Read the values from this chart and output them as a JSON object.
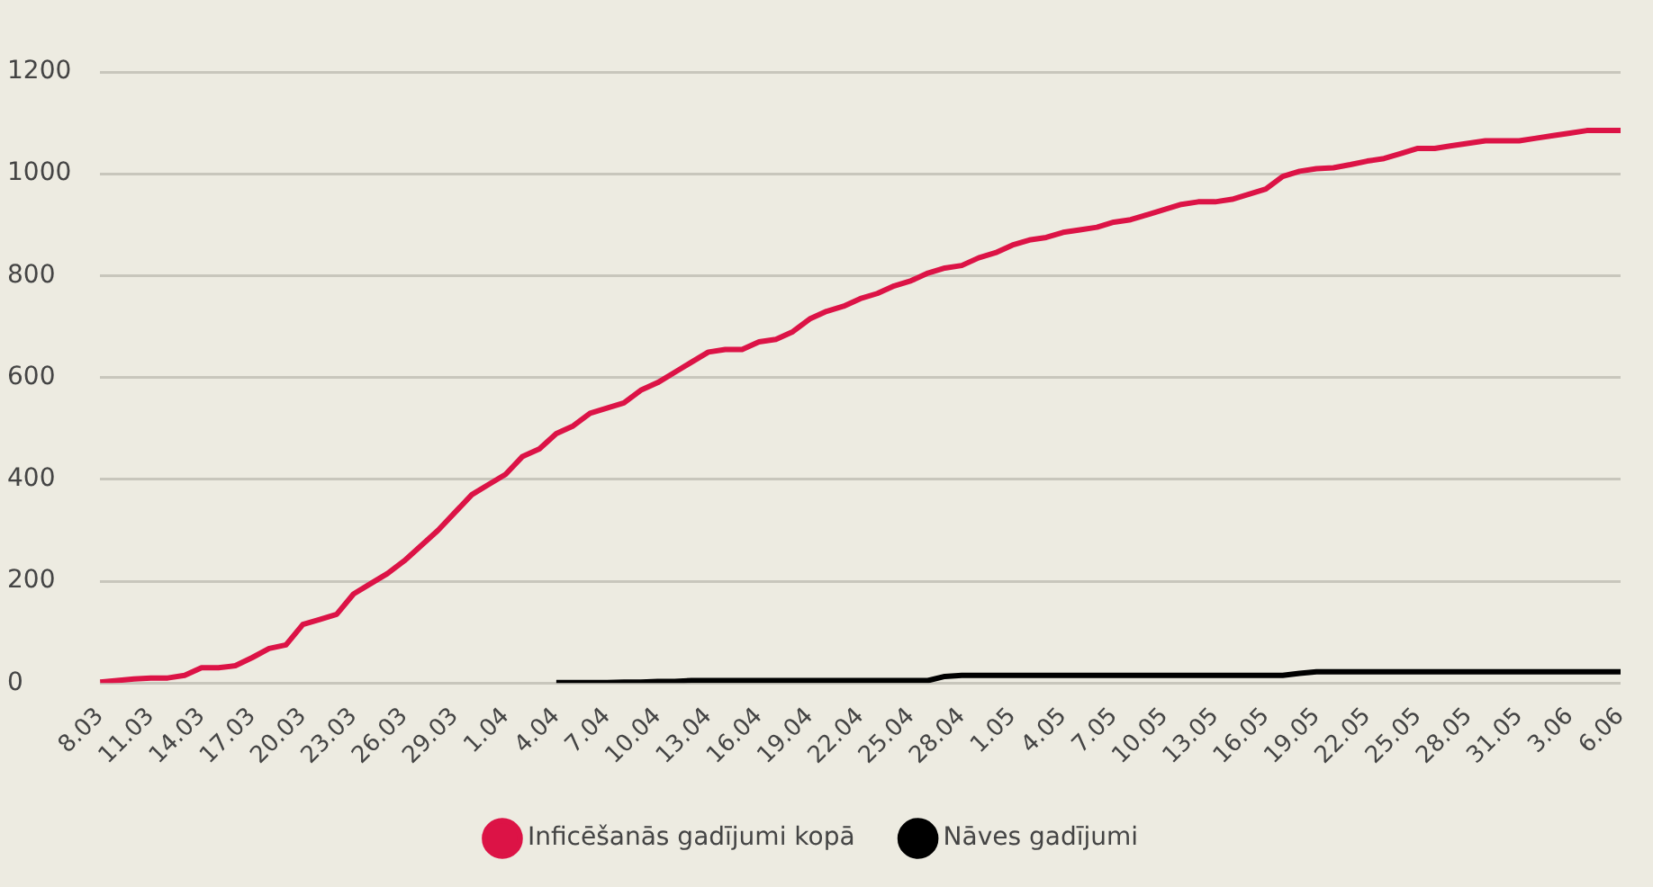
{
  "chart_data": {
    "type": "line",
    "categories": [
      "8.03",
      null,
      null,
      "11.03",
      null,
      null,
      "14.03",
      null,
      null,
      "17.03",
      null,
      null,
      "20.03",
      null,
      null,
      "23.03",
      null,
      null,
      "26.03",
      null,
      null,
      "29.03",
      null,
      null,
      "1.04",
      null,
      null,
      "4.04",
      null,
      null,
      "7.04",
      null,
      null,
      "10.04",
      null,
      null,
      "13.04",
      null,
      null,
      "16.04",
      null,
      null,
      "19.04",
      null,
      null,
      "22.04",
      null,
      null,
      "25.04",
      null,
      null,
      "28.04",
      null,
      null,
      "1.05",
      null,
      null,
      "4.05",
      null,
      null,
      "7.05",
      null,
      null,
      "10.05",
      null,
      null,
      "13.05",
      null,
      null,
      "16.05",
      null,
      null,
      "19.05",
      null,
      null,
      "22.05",
      null,
      null,
      "25.05",
      null,
      null,
      "28.05",
      null,
      null,
      "31.05",
      null,
      null,
      "3.06",
      null,
      null,
      "6.06"
    ],
    "series": [
      {
        "name": "Inficēšanās gadījumi kopā",
        "color": "#dc1346",
        "values": [
          2,
          5,
          8,
          10,
          10,
          15,
          30,
          30,
          34,
          50,
          68,
          75,
          115,
          125,
          135,
          175,
          195,
          215,
          240,
          270,
          300,
          335,
          370,
          390,
          410,
          445,
          460,
          490,
          505,
          530,
          540,
          550,
          575,
          590,
          610,
          630,
          650,
          655,
          655,
          670,
          675,
          690,
          715,
          730,
          740,
          755,
          765,
          780,
          790,
          805,
          815,
          820,
          835,
          845,
          860,
          870,
          875,
          885,
          890,
          895,
          905,
          910,
          920,
          930,
          940,
          945,
          945,
          950,
          960,
          970,
          995,
          1005,
          1010,
          1012,
          1018,
          1025,
          1030,
          1040,
          1050,
          1050,
          1055,
          1060,
          1065,
          1065,
          1065,
          1070,
          1075,
          1080,
          1085,
          1085,
          1085
        ]
      },
      {
        "name": "Nāves gadījumi",
        "color": "#000000",
        "values": [
          null,
          null,
          null,
          null,
          null,
          null,
          null,
          null,
          null,
          null,
          null,
          null,
          null,
          null,
          null,
          null,
          null,
          null,
          null,
          null,
          null,
          null,
          null,
          null,
          null,
          null,
          null,
          1,
          1,
          1,
          1,
          2,
          2,
          3,
          3,
          5,
          5,
          5,
          5,
          5,
          5,
          5,
          5,
          5,
          5,
          5,
          5,
          5,
          5,
          5,
          13,
          15,
          15,
          15,
          15,
          15,
          15,
          15,
          15,
          15,
          15,
          15,
          15,
          15,
          15,
          15,
          15,
          15,
          15,
          15,
          15,
          19,
          22,
          22,
          22,
          22,
          22,
          22,
          22,
          22,
          22,
          22,
          22,
          22,
          22,
          22,
          22,
          22,
          22,
          22,
          22
        ]
      }
    ],
    "ylim": [
      0,
      1200
    ],
    "yticks": [
      0,
      200,
      400,
      600,
      800,
      1000,
      1200
    ],
    "grid": "y",
    "legend": "bottom"
  }
}
